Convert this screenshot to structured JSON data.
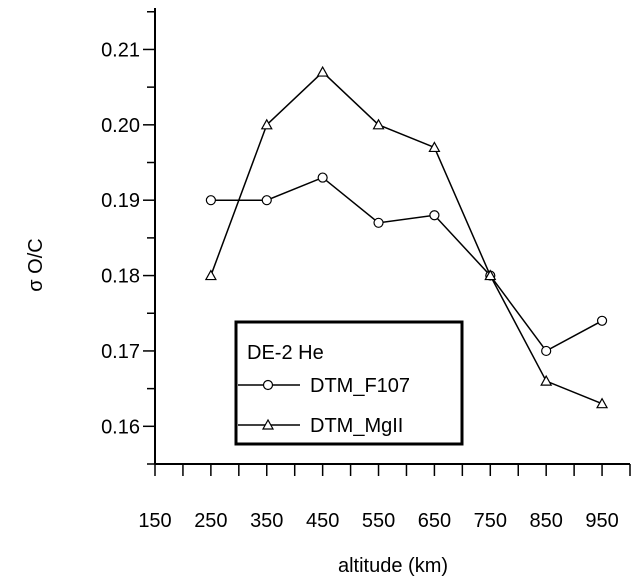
{
  "chart_data": {
    "type": "line",
    "title": "",
    "xlabel": "altitude (km)",
    "ylabel": "σ O/C",
    "x": [
      250,
      350,
      450,
      550,
      650,
      750,
      850,
      950
    ],
    "xlim": [
      150,
      1000
    ],
    "ylim": [
      0.155,
      0.2155
    ],
    "xticks": [
      "150",
      "250",
      "350",
      "450",
      "550",
      "650",
      "750",
      "850",
      "950"
    ],
    "yticks": [
      "0.16",
      "0.17",
      "0.18",
      "0.19",
      "0.20",
      "0.21"
    ],
    "grid": false,
    "legend": {
      "placement": "lower-left",
      "title": "DE-2 He",
      "entries": [
        "DTM_F107",
        "DTM_MgII"
      ]
    },
    "series": [
      {
        "name": "DTM_F107",
        "marker": "circle",
        "values": [
          0.19,
          0.19,
          0.193,
          0.187,
          0.188,
          0.18,
          0.17,
          0.174
        ]
      },
      {
        "name": "DTM_MgII",
        "marker": "triangle",
        "values": [
          0.18,
          0.2,
          0.207,
          0.2,
          0.197,
          0.18,
          0.166,
          0.163
        ]
      }
    ]
  }
}
